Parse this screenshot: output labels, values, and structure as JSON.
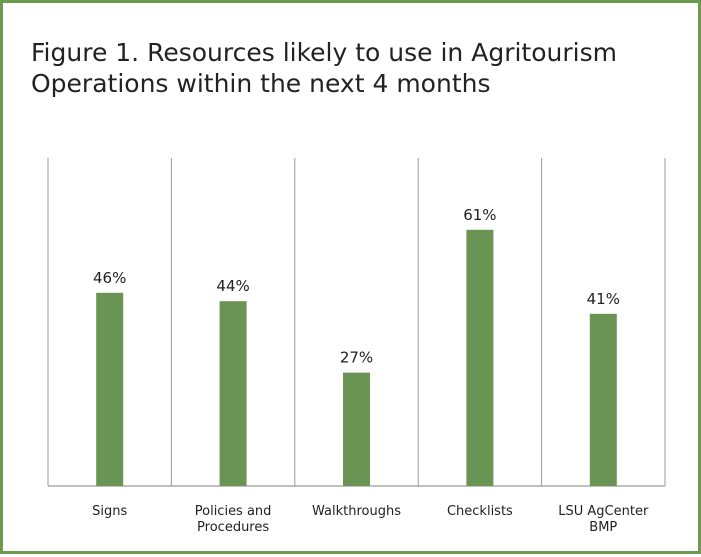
{
  "colors": {
    "frame_border": "#6c9a4f",
    "bar": "#6a9453",
    "divider": "#9a9a9a",
    "text": "#222222"
  },
  "chart_data": {
    "type": "bar",
    "title": "Figure 1. Resources likely to use in Agritourism Operations within the next 4 months",
    "xlabel": "",
    "ylabel": "",
    "categories": [
      "Signs",
      "Policies and Procedures",
      "Walkthroughs",
      "Checklists",
      "LSU AgCenter BMP"
    ],
    "category_label_lines": [
      [
        "Signs"
      ],
      [
        "Policies and",
        "Procedures"
      ],
      [
        "Walkthroughs"
      ],
      [
        "Checklists"
      ],
      [
        "LSU AgCenter",
        "BMP"
      ]
    ],
    "values": [
      46,
      44,
      27,
      61,
      41
    ],
    "data_labels": [
      "46%",
      "44%",
      "27%",
      "61%",
      "41%"
    ],
    "unit": "%",
    "ylim": [
      0,
      65
    ],
    "grid": "vertical category dividers",
    "legend": "none"
  }
}
